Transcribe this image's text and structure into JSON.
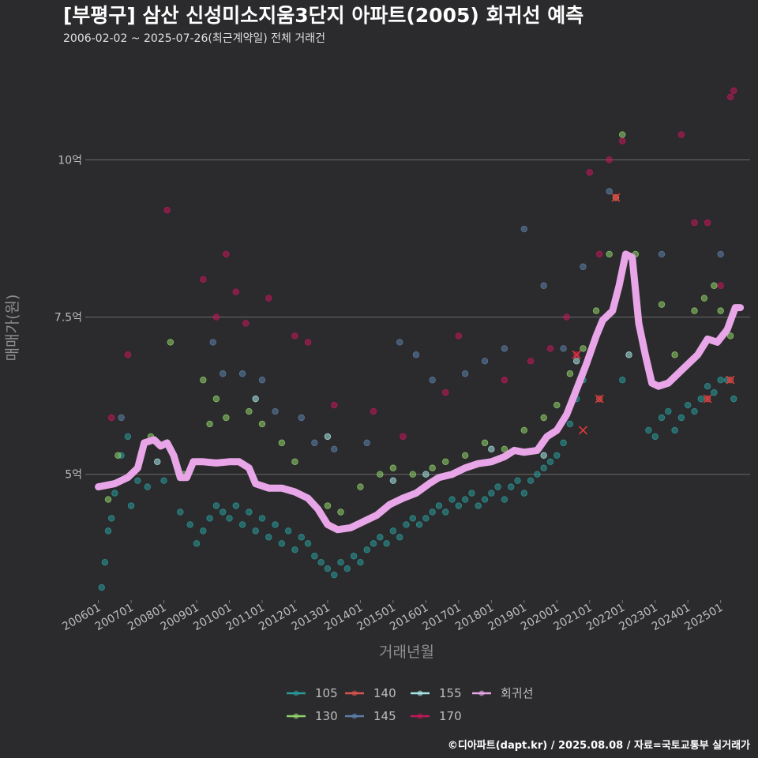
{
  "chart_data": {
    "type": "scatter",
    "title": "[부평구] 삼산 신성미소지움3단지 아파트(2005) 회귀선 예측",
    "subtitle": "2006-02-02 ~ 2025-07-26(최근계약일) 전체 거래건",
    "xlabel": "거래년월",
    "ylabel": "매매가(원)",
    "credit": "©디아파트(dapt.kr) / 2025.08.08 / 자료=국토교통부 실거래가",
    "x_ticks": [
      "200601",
      "200701",
      "200801",
      "200901",
      "201001",
      "201101",
      "201201",
      "201301",
      "201401",
      "201501",
      "201601",
      "201701",
      "201801",
      "201901",
      "202001",
      "202101",
      "202201",
      "202301",
      "202401",
      "202501"
    ],
    "y_ticks": [
      {
        "value": 5,
        "label": "5억"
      },
      {
        "value": 7.5,
        "label": "7.5억"
      },
      {
        "value": 10,
        "label": "10억"
      }
    ],
    "ylim": [
      3.0,
      11.6
    ],
    "xlim": [
      2005.6,
      2025.9
    ],
    "grid": "horizontal",
    "legend_position": "bottom",
    "series": [
      {
        "name": "105",
        "color": "#2a9a9a",
        "points": [
          [
            2006.1,
            3.2
          ],
          [
            2006.2,
            3.6
          ],
          [
            2006.3,
            4.1
          ],
          [
            2006.4,
            4.3
          ],
          [
            2006.5,
            4.7
          ],
          [
            2006.7,
            5.3
          ],
          [
            2006.9,
            5.6
          ],
          [
            2007.0,
            4.5
          ],
          [
            2007.2,
            4.9
          ],
          [
            2007.5,
            4.8
          ],
          [
            2008.0,
            4.9
          ],
          [
            2008.5,
            4.4
          ],
          [
            2008.8,
            4.2
          ],
          [
            2009.0,
            3.9
          ],
          [
            2009.2,
            4.1
          ],
          [
            2009.4,
            4.3
          ],
          [
            2009.6,
            4.5
          ],
          [
            2009.8,
            4.4
          ],
          [
            2010.0,
            4.3
          ],
          [
            2010.2,
            4.5
          ],
          [
            2010.4,
            4.2
          ],
          [
            2010.6,
            4.4
          ],
          [
            2010.8,
            4.1
          ],
          [
            2011.0,
            4.3
          ],
          [
            2011.2,
            4.0
          ],
          [
            2011.4,
            4.2
          ],
          [
            2011.6,
            3.9
          ],
          [
            2011.8,
            4.1
          ],
          [
            2012.0,
            3.8
          ],
          [
            2012.2,
            4.0
          ],
          [
            2012.4,
            3.9
          ],
          [
            2012.6,
            3.7
          ],
          [
            2012.8,
            3.6
          ],
          [
            2013.0,
            3.5
          ],
          [
            2013.2,
            3.4
          ],
          [
            2013.4,
            3.6
          ],
          [
            2013.6,
            3.5
          ],
          [
            2013.8,
            3.7
          ],
          [
            2014.0,
            3.6
          ],
          [
            2014.2,
            3.8
          ],
          [
            2014.4,
            3.9
          ],
          [
            2014.6,
            4.0
          ],
          [
            2014.8,
            3.9
          ],
          [
            2015.0,
            4.1
          ],
          [
            2015.2,
            4.0
          ],
          [
            2015.4,
            4.2
          ],
          [
            2015.6,
            4.3
          ],
          [
            2015.8,
            4.2
          ],
          [
            2016.0,
            4.3
          ],
          [
            2016.2,
            4.4
          ],
          [
            2016.4,
            4.5
          ],
          [
            2016.6,
            4.4
          ],
          [
            2016.8,
            4.6
          ],
          [
            2017.0,
            4.5
          ],
          [
            2017.2,
            4.6
          ],
          [
            2017.4,
            4.7
          ],
          [
            2017.6,
            4.5
          ],
          [
            2017.8,
            4.6
          ],
          [
            2018.0,
            4.7
          ],
          [
            2018.2,
            4.8
          ],
          [
            2018.4,
            4.6
          ],
          [
            2018.6,
            4.8
          ],
          [
            2018.8,
            4.9
          ],
          [
            2019.0,
            4.7
          ],
          [
            2019.2,
            4.9
          ],
          [
            2019.4,
            5.0
          ],
          [
            2019.6,
            5.1
          ],
          [
            2019.8,
            5.2
          ],
          [
            2020.0,
            5.3
          ],
          [
            2020.2,
            5.5
          ],
          [
            2020.4,
            5.8
          ],
          [
            2020.6,
            6.2
          ],
          [
            2020.8,
            6.5
          ],
          [
            2021.0,
            6.9
          ],
          [
            2022.0,
            6.5
          ],
          [
            2022.8,
            5.7
          ],
          [
            2023.0,
            5.6
          ],
          [
            2023.2,
            5.9
          ],
          [
            2023.4,
            6.0
          ],
          [
            2023.6,
            5.7
          ],
          [
            2023.8,
            5.9
          ],
          [
            2024.0,
            6.1
          ],
          [
            2024.2,
            6.0
          ],
          [
            2024.4,
            6.2
          ],
          [
            2024.6,
            6.4
          ],
          [
            2024.8,
            6.3
          ],
          [
            2025.0,
            6.5
          ],
          [
            2025.2,
            6.5
          ],
          [
            2025.4,
            6.2
          ]
        ]
      },
      {
        "name": "130",
        "color": "#8fd16a",
        "points": [
          [
            2006.3,
            4.6
          ],
          [
            2006.6,
            5.3
          ],
          [
            2007.6,
            5.6
          ],
          [
            2008.2,
            7.1
          ],
          [
            2008.6,
            5.0
          ],
          [
            2009.2,
            6.5
          ],
          [
            2009.4,
            5.8
          ],
          [
            2009.6,
            6.2
          ],
          [
            2009.9,
            5.9
          ],
          [
            2010.6,
            6.0
          ],
          [
            2011.0,
            5.8
          ],
          [
            2011.6,
            5.5
          ],
          [
            2012.0,
            5.2
          ],
          [
            2013.0,
            4.5
          ],
          [
            2013.4,
            4.4
          ],
          [
            2014.0,
            4.8
          ],
          [
            2014.6,
            5.0
          ],
          [
            2015.0,
            5.1
          ],
          [
            2015.6,
            5.0
          ],
          [
            2016.2,
            5.1
          ],
          [
            2016.6,
            5.2
          ],
          [
            2017.2,
            5.3
          ],
          [
            2017.8,
            5.5
          ],
          [
            2018.4,
            5.4
          ],
          [
            2019.0,
            5.7
          ],
          [
            2019.6,
            5.9
          ],
          [
            2020.0,
            6.1
          ],
          [
            2020.4,
            6.6
          ],
          [
            2020.8,
            7.0
          ],
          [
            2021.2,
            7.6
          ],
          [
            2021.6,
            8.5
          ],
          [
            2021.8,
            9.4
          ],
          [
            2022.0,
            10.4
          ],
          [
            2022.4,
            8.5
          ],
          [
            2023.2,
            7.7
          ],
          [
            2023.6,
            6.9
          ],
          [
            2024.2,
            7.6
          ],
          [
            2024.5,
            7.8
          ],
          [
            2024.8,
            8.0
          ],
          [
            2025.0,
            7.6
          ],
          [
            2025.3,
            7.2
          ]
        ]
      },
      {
        "name": "140",
        "color": "#d9534f",
        "points": [
          [
            2021.3,
            6.2
          ],
          [
            2021.8,
            9.4
          ],
          [
            2024.6,
            6.2
          ],
          [
            2025.3,
            6.5
          ]
        ]
      },
      {
        "name": "145",
        "color": "#5b7fa8",
        "points": [
          [
            2006.7,
            5.9
          ],
          [
            2009.5,
            7.1
          ],
          [
            2009.8,
            6.6
          ],
          [
            2010.4,
            6.6
          ],
          [
            2011.0,
            6.5
          ],
          [
            2011.4,
            6.0
          ],
          [
            2012.2,
            5.9
          ],
          [
            2012.6,
            5.5
          ],
          [
            2013.2,
            5.4
          ],
          [
            2014.2,
            5.5
          ],
          [
            2015.2,
            7.1
          ],
          [
            2015.7,
            6.9
          ],
          [
            2016.2,
            6.5
          ],
          [
            2017.2,
            6.6
          ],
          [
            2017.8,
            6.8
          ],
          [
            2018.4,
            7.0
          ],
          [
            2019.0,
            8.9
          ],
          [
            2019.6,
            8.0
          ],
          [
            2020.2,
            7.0
          ],
          [
            2020.8,
            8.3
          ],
          [
            2021.6,
            9.5
          ],
          [
            2023.2,
            8.5
          ],
          [
            2025.0,
            8.5
          ]
        ]
      },
      {
        "name": "155",
        "color": "#a7e6e6",
        "points": [
          [
            2007.8,
            5.2
          ],
          [
            2010.8,
            6.2
          ],
          [
            2013.0,
            5.6
          ],
          [
            2015.0,
            4.9
          ],
          [
            2016.0,
            5.0
          ],
          [
            2018.0,
            5.4
          ],
          [
            2019.6,
            5.3
          ],
          [
            2020.6,
            6.8
          ],
          [
            2022.2,
            6.9
          ]
        ]
      },
      {
        "name": "170",
        "color": "#c2185b",
        "points": [
          [
            2006.4,
            5.9
          ],
          [
            2006.9,
            6.9
          ],
          [
            2008.1,
            9.2
          ],
          [
            2009.2,
            8.1
          ],
          [
            2009.6,
            7.5
          ],
          [
            2009.9,
            8.5
          ],
          [
            2010.2,
            7.9
          ],
          [
            2010.5,
            7.4
          ],
          [
            2011.2,
            7.8
          ],
          [
            2012.0,
            7.2
          ],
          [
            2012.4,
            7.1
          ],
          [
            2013.2,
            6.1
          ],
          [
            2014.4,
            6.0
          ],
          [
            2015.3,
            5.6
          ],
          [
            2016.6,
            6.3
          ],
          [
            2017.0,
            7.2
          ],
          [
            2018.4,
            6.5
          ],
          [
            2019.2,
            6.8
          ],
          [
            2019.8,
            7.0
          ],
          [
            2020.3,
            7.5
          ],
          [
            2020.6,
            6.9
          ],
          [
            2021.0,
            9.8
          ],
          [
            2021.3,
            8.5
          ],
          [
            2021.6,
            10.0
          ],
          [
            2022.0,
            10.3
          ],
          [
            2023.8,
            10.4
          ],
          [
            2024.2,
            9.0
          ],
          [
            2024.6,
            9.0
          ],
          [
            2025.0,
            8.0
          ],
          [
            2025.3,
            11.0
          ],
          [
            2025.4,
            11.1
          ]
        ]
      }
    ],
    "regression": {
      "name": "회귀선",
      "color": "#e8a6e8",
      "points": [
        [
          2006.0,
          4.8
        ],
        [
          2006.5,
          4.85
        ],
        [
          2006.9,
          4.95
        ],
        [
          2007.2,
          5.1
        ],
        [
          2007.4,
          5.5
        ],
        [
          2007.7,
          5.55
        ],
        [
          2007.9,
          5.45
        ],
        [
          2008.1,
          5.5
        ],
        [
          2008.3,
          5.3
        ],
        [
          2008.5,
          4.95
        ],
        [
          2008.7,
          4.95
        ],
        [
          2008.9,
          5.2
        ],
        [
          2009.2,
          5.2
        ],
        [
          2009.6,
          5.18
        ],
        [
          2010.0,
          5.2
        ],
        [
          2010.3,
          5.2
        ],
        [
          2010.6,
          5.1
        ],
        [
          2010.8,
          4.85
        ],
        [
          2011.2,
          4.78
        ],
        [
          2011.6,
          4.78
        ],
        [
          2012.0,
          4.72
        ],
        [
          2012.4,
          4.62
        ],
        [
          2012.7,
          4.45
        ],
        [
          2013.0,
          4.2
        ],
        [
          2013.3,
          4.12
        ],
        [
          2013.7,
          4.15
        ],
        [
          2014.1,
          4.25
        ],
        [
          2014.5,
          4.35
        ],
        [
          2014.9,
          4.52
        ],
        [
          2015.3,
          4.62
        ],
        [
          2015.7,
          4.7
        ],
        [
          2016.1,
          4.85
        ],
        [
          2016.4,
          4.95
        ],
        [
          2016.8,
          5.0
        ],
        [
          2017.2,
          5.1
        ],
        [
          2017.6,
          5.17
        ],
        [
          2018.0,
          5.2
        ],
        [
          2018.4,
          5.28
        ],
        [
          2018.7,
          5.38
        ],
        [
          2019.0,
          5.35
        ],
        [
          2019.4,
          5.38
        ],
        [
          2019.7,
          5.6
        ],
        [
          2020.0,
          5.7
        ],
        [
          2020.3,
          5.95
        ],
        [
          2020.6,
          6.35
        ],
        [
          2020.9,
          6.75
        ],
        [
          2021.2,
          7.2
        ],
        [
          2021.4,
          7.45
        ],
        [
          2021.7,
          7.6
        ],
        [
          2021.9,
          8.0
        ],
        [
          2022.1,
          8.5
        ],
        [
          2022.3,
          8.45
        ],
        [
          2022.5,
          7.4
        ],
        [
          2022.7,
          6.9
        ],
        [
          2022.9,
          6.45
        ],
        [
          2023.1,
          6.4
        ],
        [
          2023.4,
          6.45
        ],
        [
          2023.7,
          6.6
        ],
        [
          2024.0,
          6.75
        ],
        [
          2024.3,
          6.9
        ],
        [
          2024.6,
          7.15
        ],
        [
          2024.9,
          7.1
        ],
        [
          2025.2,
          7.3
        ],
        [
          2025.45,
          7.65
        ],
        [
          2025.6,
          7.65
        ]
      ]
    },
    "special_marks": [
      [
        2021.3,
        6.2
      ],
      [
        2021.8,
        9.4
      ],
      [
        2024.6,
        6.2
      ],
      [
        2025.3,
        6.5
      ],
      [
        2020.6,
        6.9
      ],
      [
        2020.8,
        5.7
      ]
    ],
    "legend": [
      {
        "name": "105",
        "color": "#2a9a9a"
      },
      {
        "name": "140",
        "color": "#d9534f"
      },
      {
        "name": "155",
        "color": "#a7e6e6"
      },
      {
        "name": "회귀선",
        "color": "#e8a6e8"
      },
      {
        "name": "130",
        "color": "#8fd16a"
      },
      {
        "name": "145",
        "color": "#5b7fa8"
      },
      {
        "name": "170",
        "color": "#c2185b"
      }
    ]
  }
}
